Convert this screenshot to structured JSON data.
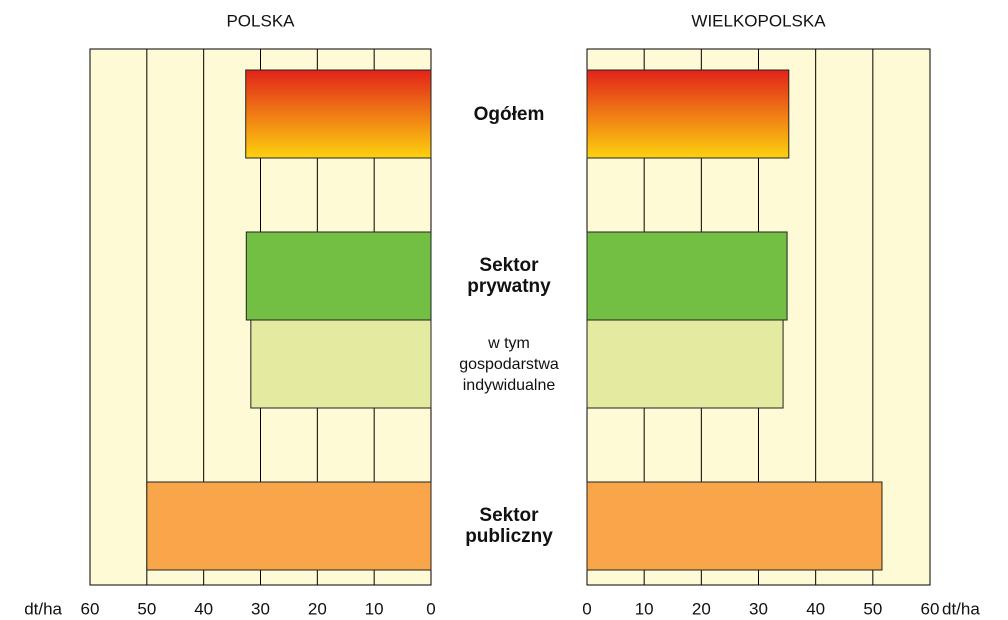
{
  "categories": [
    "Ogółem",
    "Sektor prywatny",
    "w tym gospodarstwa indywidualne",
    "Sektor publiczny"
  ],
  "category_bold": [
    true,
    true,
    false,
    true
  ],
  "colors": [
    {
      "gradient": [
        "#e2231a",
        "#fdd20e"
      ]
    },
    "#72bf44",
    "#e4eba0",
    "#f9a64a"
  ],
  "chart_data": [
    {
      "type": "hbar",
      "title": "POLSKA",
      "unit": "dt/ha",
      "reversed": true,
      "values": [
        32.6,
        32.5,
        31.7,
        50.0
      ],
      "xlim": [
        0,
        60
      ],
      "xticks": [
        0,
        10,
        20,
        30,
        40,
        50,
        60
      ],
      "grid": true,
      "background": "#fffad6"
    },
    {
      "type": "hbar",
      "title": "WIELKOPOLSKA",
      "unit": "dt/ha",
      "reversed": false,
      "values": [
        35.3,
        35.0,
        34.3,
        51.6
      ],
      "xlim": [
        0,
        60
      ],
      "xticks": [
        0,
        10,
        20,
        30,
        40,
        50,
        60
      ],
      "grid": true,
      "background": "#fffad6"
    }
  ]
}
